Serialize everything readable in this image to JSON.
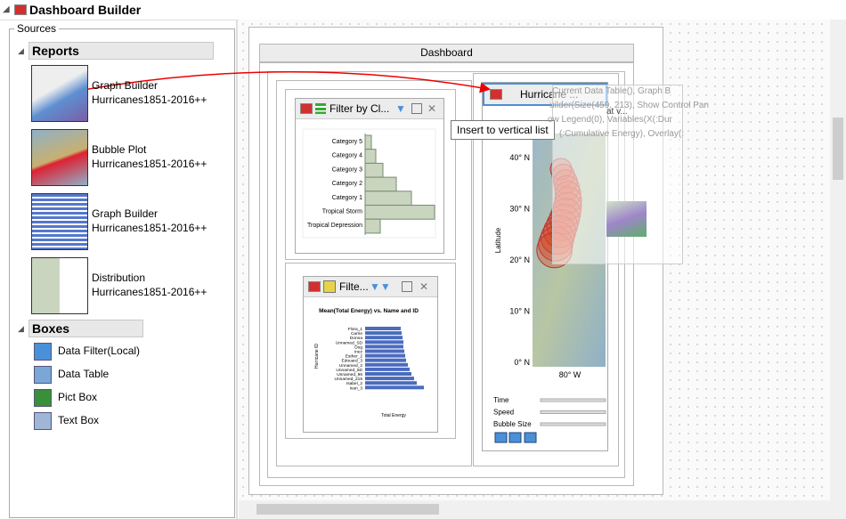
{
  "header": {
    "title": "Dashboard Builder"
  },
  "sources": {
    "label": "Sources",
    "reports": {
      "title": "Reports",
      "items": [
        {
          "name": "Graph Builder",
          "table": "Hurricanes1851-2016++"
        },
        {
          "name": "Bubble Plot",
          "table": "Hurricanes1851-2016++"
        },
        {
          "name": "Graph Builder",
          "table": "Hurricanes1851-2016++"
        },
        {
          "name": "Distribution",
          "table": "Hurricanes1851-2016++"
        }
      ]
    },
    "boxes": {
      "title": "Boxes",
      "items": [
        "Data Filter(Local)",
        "Data Table",
        "Pict Box",
        "Text Box"
      ]
    }
  },
  "dashboard": {
    "title": "Dashboard",
    "filter_panel": {
      "title": "Filter by Cl...",
      "chart": {
        "type": "bar",
        "categories": [
          "Category 5",
          "Category 4",
          "Category 3",
          "Category 2",
          "Category 1",
          "Tropical Storm",
          "Tropical Depression"
        ],
        "values": [
          7,
          12,
          20,
          35,
          52,
          78,
          17
        ],
        "color": "#c9d5bf"
      }
    },
    "filter_panel_2": {
      "title": "Filte...",
      "chart": {
        "type": "bar",
        "title": "Mean(Total Energy) vs. Name and ID",
        "x_label": "Total Energy",
        "y_label": "Hurricane ID",
        "categories": [
          "Flora_1",
          "Carrie",
          "Donna",
          "Unnamed_SD",
          "Dog",
          "Inez",
          "Esther_2",
          "Edouard_3",
          "Unnamed_2",
          "Unnamed_5D",
          "Unnamed_96",
          "Unnamed_215",
          "Isabel_2",
          "Ivan_3"
        ],
        "values": [
          40,
          41,
          42,
          43,
          43,
          44,
          45,
          46,
          48,
          50,
          52,
          55,
          58,
          66
        ],
        "color": "#4a6cc0"
      }
    },
    "map_panel": {
      "title": "Hurricane ...",
      "y_label": "Latitude",
      "yticks": [
        "40° N",
        "30° N",
        "20° N",
        "10° N",
        "0° N"
      ],
      "xticks": [
        "80° W"
      ],
      "controls": [
        "Time",
        "Speed",
        "Bubble Size"
      ]
    },
    "drag_ghost": {
      "title": "at v...",
      "lines": [
        "Current Data Table(), Graph B",
        "uilder(Size(459, 213), Show Control Pan",
        "ow Legend(0), Variables(X(:Dur",
        "(:Cumulative Energy), Overlay(:"
      ]
    },
    "tooltip": "Insert to vertical list"
  }
}
